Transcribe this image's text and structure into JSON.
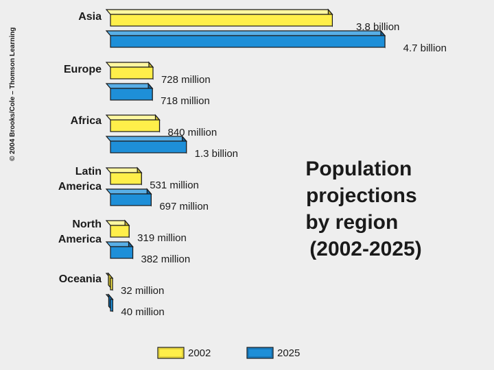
{
  "copyright": "© 2004 Brooks/Cole – Thomson Learning",
  "colors": {
    "2002": "#ffef4a",
    "2025": "#1e8fd8",
    "2002_side": "#c9b730",
    "2025_side": "#13609a",
    "2002_top": "#fff7a0",
    "2025_top": "#58aee6",
    "outline": "#1a1a1a"
  },
  "chart_data": {
    "type": "bar",
    "orientation": "horizontal",
    "title_lines": [
      "Population",
      "projections",
      "by region",
      "(2002-2025)"
    ],
    "legend": {
      "position": "bottom",
      "items": [
        "2002",
        "2025"
      ]
    },
    "categories": [
      {
        "name": "Asia",
        "label_lines": [
          "Asia"
        ]
      },
      {
        "name": "Europe",
        "label_lines": [
          "Europe"
        ]
      },
      {
        "name": "Africa",
        "label_lines": [
          "Africa"
        ]
      },
      {
        "name": "Latin America",
        "label_lines": [
          "Latin",
          "America"
        ]
      },
      {
        "name": "North America",
        "label_lines": [
          "North",
          "America"
        ]
      },
      {
        "name": "Oceania",
        "label_lines": [
          "Oceania"
        ]
      }
    ],
    "series": [
      {
        "name": "2002",
        "values_millions": [
          3800,
          728,
          840,
          531,
          319,
          32
        ],
        "labels": [
          "3.8 billion",
          "728 million",
          "840 million",
          "531 million",
          "319 million",
          "32 million"
        ]
      },
      {
        "name": "2025",
        "values_millions": [
          4700,
          718,
          1300,
          697,
          382,
          40
        ],
        "labels": [
          "4.7 billion",
          "718 million",
          "1.3 billion",
          "697 million",
          "382 million",
          "40 million"
        ]
      }
    ]
  }
}
